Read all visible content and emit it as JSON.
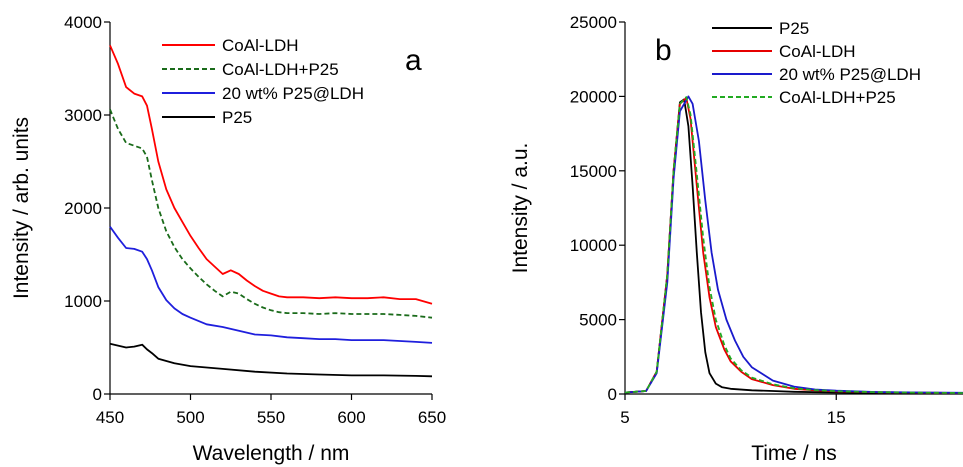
{
  "chart_data": [
    {
      "type": "line",
      "panel_label": "a",
      "xlabel": "Wavelength / nm",
      "ylabel": "Intensity / arb. units",
      "xlim": [
        450,
        650
      ],
      "ylim": [
        0,
        4000
      ],
      "xticks": [
        450,
        500,
        550,
        600,
        650
      ],
      "yticks": [
        0,
        1000,
        2000,
        3000,
        4000
      ],
      "grid": false,
      "legend_position": "top-right",
      "series": [
        {
          "name": "CoAl-LDH",
          "color": "#ff0000",
          "dash": "solid",
          "x": [
            450,
            455,
            460,
            465,
            470,
            473,
            476,
            480,
            485,
            490,
            495,
            500,
            505,
            510,
            515,
            520,
            525,
            530,
            535,
            540,
            545,
            550,
            555,
            560,
            570,
            580,
            590,
            600,
            610,
            620,
            630,
            640,
            650
          ],
          "y": [
            3750,
            3550,
            3300,
            3230,
            3200,
            3100,
            2850,
            2500,
            2200,
            2000,
            1850,
            1700,
            1570,
            1450,
            1370,
            1290,
            1330,
            1290,
            1220,
            1160,
            1110,
            1080,
            1050,
            1040,
            1040,
            1030,
            1040,
            1030,
            1030,
            1040,
            1020,
            1020,
            970
          ]
        },
        {
          "name": "CoAl-LDH+P25",
          "color": "#1a6b1a",
          "dash": "dashed",
          "x": [
            450,
            455,
            460,
            465,
            470,
            473,
            476,
            480,
            485,
            490,
            495,
            500,
            505,
            510,
            515,
            520,
            525,
            530,
            535,
            540,
            545,
            550,
            555,
            560,
            570,
            580,
            590,
            600,
            610,
            620,
            630,
            640,
            650
          ],
          "y": [
            3060,
            2850,
            2700,
            2670,
            2640,
            2550,
            2300,
            2000,
            1750,
            1580,
            1450,
            1350,
            1260,
            1180,
            1110,
            1050,
            1100,
            1080,
            1020,
            970,
            930,
            900,
            880,
            870,
            870,
            860,
            870,
            860,
            860,
            860,
            850,
            840,
            820
          ]
        },
        {
          "name": "20 wt% P25@LDH",
          "color": "#1f1fdd",
          "dash": "solid",
          "x": [
            450,
            455,
            460,
            465,
            470,
            473,
            476,
            480,
            485,
            490,
            495,
            500,
            510,
            520,
            530,
            540,
            550,
            560,
            570,
            580,
            590,
            600,
            610,
            620,
            630,
            640,
            650
          ],
          "y": [
            1800,
            1680,
            1570,
            1560,
            1530,
            1450,
            1330,
            1150,
            1010,
            920,
            860,
            820,
            750,
            720,
            680,
            640,
            630,
            610,
            600,
            590,
            590,
            580,
            580,
            580,
            570,
            560,
            550
          ]
        },
        {
          "name": "P25",
          "color": "#000000",
          "dash": "solid",
          "x": [
            450,
            455,
            460,
            465,
            470,
            473,
            476,
            480,
            490,
            500,
            520,
            540,
            560,
            580,
            600,
            620,
            640,
            650
          ],
          "y": [
            540,
            520,
            500,
            510,
            530,
            480,
            440,
            380,
            330,
            300,
            270,
            240,
            220,
            210,
            200,
            200,
            195,
            190
          ]
        }
      ]
    },
    {
      "type": "line",
      "panel_label": "b",
      "xlabel": "Time / ns",
      "ylabel": "Intensity / a.u.",
      "xlim": [
        5,
        21
      ],
      "ylim": [
        0,
        25000
      ],
      "xticks": [
        5,
        15
      ],
      "yticks": [
        0,
        5000,
        10000,
        15000,
        20000,
        25000
      ],
      "grid": false,
      "legend_position": "top-right",
      "series": [
        {
          "name": "P25",
          "color": "#000000",
          "dash": "solid",
          "x": [
            5,
            6,
            6.5,
            7,
            7.3,
            7.6,
            7.8,
            8.0,
            8.2,
            8.4,
            8.6,
            8.8,
            9.0,
            9.3,
            9.6,
            10,
            11,
            12,
            13,
            15,
            17,
            19,
            21
          ],
          "y": [
            100,
            200,
            1500,
            8000,
            15000,
            19600,
            19800,
            18000,
            14000,
            9500,
            5500,
            2800,
            1400,
            700,
            450,
            350,
            250,
            200,
            150,
            100,
            80,
            60,
            50
          ]
        },
        {
          "name": "CoAl-LDH",
          "color": "#e60000",
          "dash": "solid",
          "x": [
            5,
            6,
            6.5,
            7,
            7.3,
            7.6,
            7.9,
            8.1,
            8.4,
            8.7,
            9.0,
            9.3,
            9.7,
            10,
            10.5,
            11,
            12,
            13,
            14,
            15,
            17,
            19,
            21
          ],
          "y": [
            100,
            200,
            1500,
            8000,
            15000,
            19500,
            19900,
            18500,
            14000,
            9500,
            6500,
            4500,
            3000,
            2200,
            1500,
            1000,
            600,
            350,
            250,
            180,
            120,
            90,
            70
          ]
        },
        {
          "name": "20 wt% P25@LDH",
          "color": "#1a1acc",
          "dash": "solid",
          "x": [
            5,
            6,
            6.5,
            7,
            7.3,
            7.6,
            8.0,
            8.2,
            8.5,
            8.8,
            9.1,
            9.4,
            9.8,
            10.2,
            10.6,
            11,
            12,
            13,
            14,
            15,
            17,
            19,
            21
          ],
          "y": [
            100,
            200,
            1400,
            7500,
            14500,
            19000,
            20000,
            19500,
            17000,
            13000,
            9500,
            7000,
            5000,
            3600,
            2500,
            1800,
            900,
            500,
            300,
            220,
            130,
            100,
            80
          ]
        },
        {
          "name": "CoAl-LDH+P25",
          "color": "#22aa22",
          "dash": "dashed",
          "x": [
            5,
            6,
            6.5,
            7,
            7.3,
            7.6,
            7.9,
            8.1,
            8.4,
            8.7,
            9.0,
            9.3,
            9.7,
            10,
            10.5,
            11,
            12,
            13,
            14,
            15,
            17,
            19,
            21
          ],
          "y": [
            100,
            200,
            1500,
            8000,
            15000,
            19500,
            19950,
            18800,
            14800,
            10500,
            7200,
            5000,
            3300,
            2400,
            1600,
            1100,
            650,
            380,
            260,
            190,
            120,
            90,
            70
          ]
        }
      ]
    }
  ]
}
